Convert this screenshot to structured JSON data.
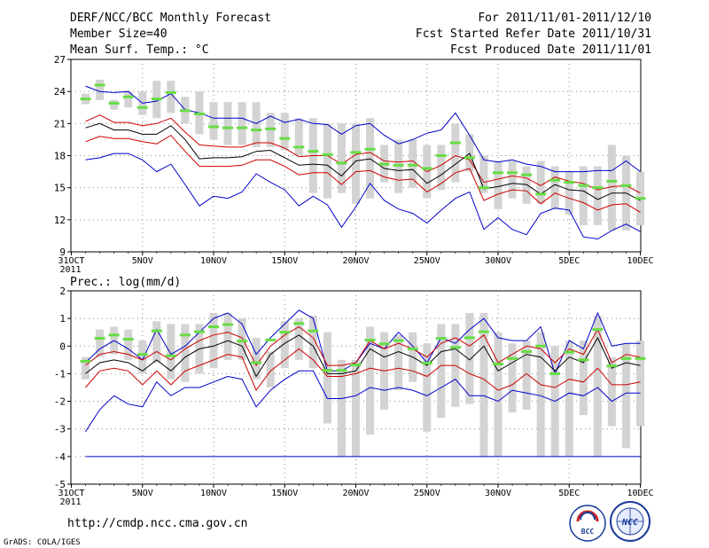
{
  "header": {
    "title": "DERF/NCC/BCC Monthly Forecast",
    "member_size": "Member Size=40",
    "var_label": "Mean Surf. Temp.: °C",
    "period": "For 2011/11/01-2011/12/10",
    "started": "Fcst Started Refer Date 2011/10/31",
    "produced": "Fcst Produced Date 2011/11/01"
  },
  "footer": {
    "url": "http://cmdp.ncc.cma.gov.cn",
    "grads": "GrADS: COLA/IGES",
    "logo_bcc": "BCC",
    "logo_ncc": "NCC"
  },
  "colors": {
    "box": "#d3d3d3",
    "median": "#66dd44",
    "mean": "#000000",
    "sd": "#cc0000",
    "envelope": "#0000cc",
    "grid": "#888888"
  },
  "chart_data": [
    {
      "type": "boxplot-ensemble",
      "title": "Mean Surf. Temp.: °C",
      "ylim": [
        9,
        27
      ],
      "yticks": [
        9,
        12,
        15,
        18,
        21,
        24,
        27
      ],
      "x_tick_labels": [
        "31OCT",
        "5NOV",
        "10NOV",
        "15NOV",
        "20NOV",
        "25NOV",
        "30NOV",
        "5DEC",
        "10DEC"
      ],
      "x_year_label": "2011",
      "days": [
        "11/01",
        "11/02",
        "11/03",
        "11/04",
        "11/05",
        "11/06",
        "11/07",
        "11/08",
        "11/09",
        "11/10",
        "11/11",
        "11/12",
        "11/13",
        "11/14",
        "11/15",
        "11/16",
        "11/17",
        "11/18",
        "11/19",
        "11/20",
        "11/21",
        "11/22",
        "11/23",
        "11/24",
        "11/25",
        "11/26",
        "11/27",
        "11/28",
        "11/29",
        "11/30",
        "12/01",
        "12/02",
        "12/03",
        "12/04",
        "12/05",
        "12/06",
        "12/07",
        "12/08",
        "12/09",
        "12/10"
      ],
      "box_low": [
        22.8,
        23.2,
        22.3,
        22.5,
        21.8,
        21.5,
        22.0,
        21.0,
        20.0,
        19.5,
        19.0,
        19.0,
        18.8,
        18.8,
        18.5,
        18.0,
        14.5,
        14.0,
        14.5,
        13.5,
        14.0,
        15.5,
        14.5,
        15.0,
        14.0,
        14.8,
        15.5,
        16.5,
        14.5,
        13.0,
        14.0,
        13.5,
        13.5,
        13.0,
        12.5,
        11.5,
        11.5,
        11.0,
        11.0,
        11.5
      ],
      "box_high": [
        23.8,
        25.1,
        23.2,
        24.0,
        24.0,
        25.0,
        25.0,
        23.5,
        24.0,
        23.0,
        23.0,
        23.0,
        23.0,
        22.0,
        22.0,
        21.5,
        21.5,
        21.0,
        21.0,
        21.0,
        21.5,
        19.0,
        19.5,
        19.5,
        19.0,
        19.0,
        21.0,
        20.0,
        18.0,
        17.5,
        17.5,
        17.0,
        17.5,
        17.0,
        16.5,
        17.0,
        17.0,
        19.0,
        18.0,
        16.5
      ],
      "median": [
        23.3,
        24.6,
        22.9,
        23.5,
        22.5,
        23.3,
        23.9,
        22.2,
        21.9,
        20.7,
        20.6,
        20.6,
        20.4,
        20.5,
        19.6,
        18.8,
        18.4,
        18.1,
        17.3,
        18.3,
        18.6,
        17.2,
        17.1,
        17.1,
        16.8,
        18.0,
        19.2,
        17.8,
        15.0,
        16.4,
        16.4,
        16.2,
        14.4,
        15.7,
        15.5,
        15.2,
        15.0,
        15.6,
        15.2,
        14.0
      ],
      "mean": [
        20.6,
        21.0,
        20.4,
        20.4,
        20.0,
        20.0,
        20.8,
        19.5,
        17.7,
        17.8,
        17.8,
        17.9,
        18.4,
        18.5,
        17.8,
        17.1,
        17.2,
        17.1,
        16.1,
        17.5,
        17.7,
        16.8,
        16.6,
        16.7,
        15.4,
        16.2,
        17.2,
        18.2,
        14.9,
        15.1,
        15.4,
        15.3,
        14.4,
        15.3,
        14.8,
        14.7,
        13.9,
        14.5,
        14.5,
        13.8
      ],
      "mean_plus_sd": [
        21.2,
        21.8,
        21.1,
        21.1,
        20.8,
        21.0,
        21.5,
        20.2,
        19.0,
        18.9,
        18.8,
        18.8,
        19.2,
        19.2,
        18.7,
        17.9,
        18.0,
        18.0,
        17.2,
        18.1,
        18.3,
        17.5,
        17.4,
        17.5,
        16.5,
        17.1,
        18.0,
        17.6,
        15.5,
        15.8,
        16.1,
        15.9,
        15.2,
        16.0,
        15.6,
        15.4,
        14.8,
        15.1,
        15.2,
        14.5
      ],
      "mean_minus_sd": [
        19.3,
        19.8,
        19.6,
        19.6,
        19.3,
        19.1,
        19.9,
        18.4,
        17.0,
        17.0,
        17.0,
        17.1,
        17.6,
        17.6,
        17.0,
        16.2,
        16.4,
        16.4,
        15.3,
        16.5,
        16.6,
        16.0,
        15.7,
        15.8,
        14.6,
        15.4,
        16.4,
        16.8,
        13.8,
        14.4,
        14.8,
        14.7,
        13.5,
        14.5,
        14.0,
        13.6,
        12.9,
        13.4,
        13.5,
        12.7
      ],
      "max": [
        24.5,
        24.0,
        23.9,
        24.0,
        22.9,
        23.1,
        23.8,
        22.3,
        22.0,
        21.5,
        21.5,
        21.5,
        21.0,
        21.7,
        21.1,
        21.4,
        21.0,
        20.9,
        20.0,
        20.8,
        21.0,
        19.9,
        19.1,
        19.5,
        20.1,
        20.4,
        22.0,
        19.9,
        17.6,
        17.4,
        17.6,
        17.2,
        17.0,
        16.5,
        16.5,
        16.5,
        16.6,
        16.6,
        17.5,
        16.5
      ],
      "min": [
        17.6,
        17.8,
        18.2,
        18.2,
        17.6,
        16.5,
        17.2,
        15.3,
        13.3,
        14.2,
        14.0,
        14.6,
        16.3,
        15.5,
        14.8,
        13.3,
        14.2,
        13.4,
        11.3,
        13.2,
        15.4,
        13.8,
        13.0,
        12.6,
        11.7,
        12.9,
        14.0,
        14.6,
        11.1,
        12.2,
        11.1,
        10.6,
        12.6,
        13.1,
        12.9,
        10.4,
        10.2,
        11.0,
        11.6,
        10.9
      ]
    },
    {
      "type": "boxplot-ensemble",
      "title": "Prec.: log(mm/d)",
      "ylim": [
        -5,
        2
      ],
      "yticks": [
        -5,
        -4,
        -3,
        -2,
        -1,
        0,
        1,
        2
      ],
      "x_tick_labels": [
        "31OCT",
        "5NOV",
        "10NOV",
        "15NOV",
        "20NOV",
        "25NOV",
        "30NOV",
        "5DEC",
        "10DEC"
      ],
      "x_year_label": "2011",
      "box_low": [
        -1.2,
        -0.4,
        -0.3,
        -0.5,
        -1.0,
        -0.6,
        -1.2,
        -1.3,
        -1.0,
        -0.8,
        -0.5,
        -0.5,
        -1.2,
        -1.5,
        -0.8,
        -0.5,
        -0.8,
        -2.8,
        -4.0,
        -4.0,
        -3.2,
        -2.3,
        -1.6,
        -1.3,
        -3.1,
        -2.6,
        -2.2,
        -2.1,
        -4.0,
        -4.0,
        -2.4,
        -2.3,
        -4.0,
        -4.0,
        -4.0,
        -2.5,
        -4.0,
        -2.9,
        -3.7,
        -2.9
      ],
      "box_high": [
        -0.4,
        0.6,
        0.7,
        0.6,
        0.2,
        0.9,
        0.8,
        0.8,
        0.8,
        1.2,
        1.2,
        1.0,
        0.3,
        -0.2,
        0.9,
        1.0,
        1.1,
        0.5,
        -0.5,
        -0.5,
        0.7,
        0.5,
        0.4,
        0.5,
        0.1,
        0.8,
        0.8,
        1.2,
        1.2,
        0.5,
        0.1,
        0.2,
        0.5,
        0.0,
        0.2,
        0.2,
        1.1,
        -0.4,
        0.1,
        0.2
      ],
      "median": [
        -0.55,
        0.28,
        0.4,
        0.25,
        -0.3,
        0.55,
        -0.35,
        0.4,
        0.52,
        0.7,
        0.78,
        0.18,
        -0.6,
        0.22,
        0.5,
        0.82,
        0.55,
        -0.88,
        -0.88,
        -0.68,
        0.22,
        0.08,
        0.2,
        -0.1,
        -0.62,
        0.28,
        -0.05,
        0.3,
        0.52,
        -0.65,
        -0.45,
        -0.2,
        0.0,
        -1.0,
        -0.22,
        -0.5,
        0.6,
        -0.72,
        -0.45,
        -0.45
      ],
      "mean": [
        -1.0,
        -0.6,
        -0.5,
        -0.6,
        -0.9,
        -0.5,
        -0.9,
        -0.4,
        -0.1,
        0.0,
        0.2,
        0.0,
        -1.1,
        -0.3,
        0.1,
        0.4,
        0.0,
        -1.0,
        -1.0,
        -0.9,
        -0.1,
        -0.4,
        -0.2,
        -0.4,
        -0.7,
        -0.2,
        -0.1,
        -0.5,
        0.0,
        -0.9,
        -0.6,
        -0.3,
        -0.4,
        -0.9,
        -0.4,
        -0.6,
        0.3,
        -0.8,
        -0.6,
        -0.7
      ],
      "mean_plus_sd": [
        -0.7,
        -0.3,
        -0.2,
        -0.3,
        -0.5,
        -0.2,
        -0.5,
        -0.1,
        0.2,
        0.4,
        0.5,
        0.3,
        -0.7,
        0.0,
        0.4,
        0.7,
        0.3,
        -0.7,
        -0.7,
        -0.6,
        0.2,
        -0.1,
        0.1,
        -0.1,
        -0.4,
        0.1,
        0.3,
        0.0,
        0.4,
        -0.6,
        -0.3,
        0.0,
        -0.1,
        -0.6,
        -0.1,
        -0.3,
        0.6,
        -0.6,
        -0.3,
        -0.4
      ],
      "mean_minus_sd": [
        -1.5,
        -0.9,
        -0.8,
        -0.9,
        -1.4,
        -0.9,
        -1.4,
        -0.9,
        -0.7,
        -0.5,
        -0.3,
        -0.4,
        -1.6,
        -0.9,
        -0.5,
        -0.1,
        -0.5,
        -1.1,
        -1.1,
        -1.0,
        -0.8,
        -0.9,
        -0.8,
        -0.9,
        -1.1,
        -0.7,
        -0.7,
        -1.0,
        -1.2,
        -1.6,
        -1.4,
        -1.0,
        -1.4,
        -1.5,
        -1.2,
        -1.3,
        -0.8,
        -1.4,
        -1.4,
        -1.3
      ],
      "max": [
        -0.6,
        -0.1,
        0.2,
        -0.1,
        -0.5,
        0.6,
        -0.3,
        0.0,
        0.5,
        1.0,
        1.2,
        0.8,
        -0.3,
        0.3,
        0.8,
        1.3,
        1.0,
        -0.9,
        -0.9,
        -0.6,
        0.1,
        -0.1,
        0.5,
        0.0,
        -0.6,
        0.3,
        0.1,
        0.6,
        1.0,
        0.3,
        0.2,
        0.2,
        0.7,
        -1.0,
        0.2,
        -0.1,
        1.2,
        0.0,
        0.1,
        0.1
      ],
      "min": [
        -3.1,
        -2.3,
        -1.8,
        -2.1,
        -2.2,
        -1.3,
        -1.8,
        -1.5,
        -1.5,
        -1.3,
        -1.1,
        -1.2,
        -2.2,
        -1.6,
        -1.2,
        -0.9,
        -0.9,
        -1.9,
        -1.9,
        -1.8,
        -1.5,
        -1.6,
        -1.5,
        -1.6,
        -1.8,
        -1.5,
        -1.2,
        -1.8,
        -1.8,
        -2.0,
        -1.6,
        -1.7,
        -1.8,
        -2.0,
        -1.7,
        -1.8,
        -1.5,
        -2.0,
        -1.7,
        -1.7
      ],
      "floor_line": -4
    }
  ]
}
